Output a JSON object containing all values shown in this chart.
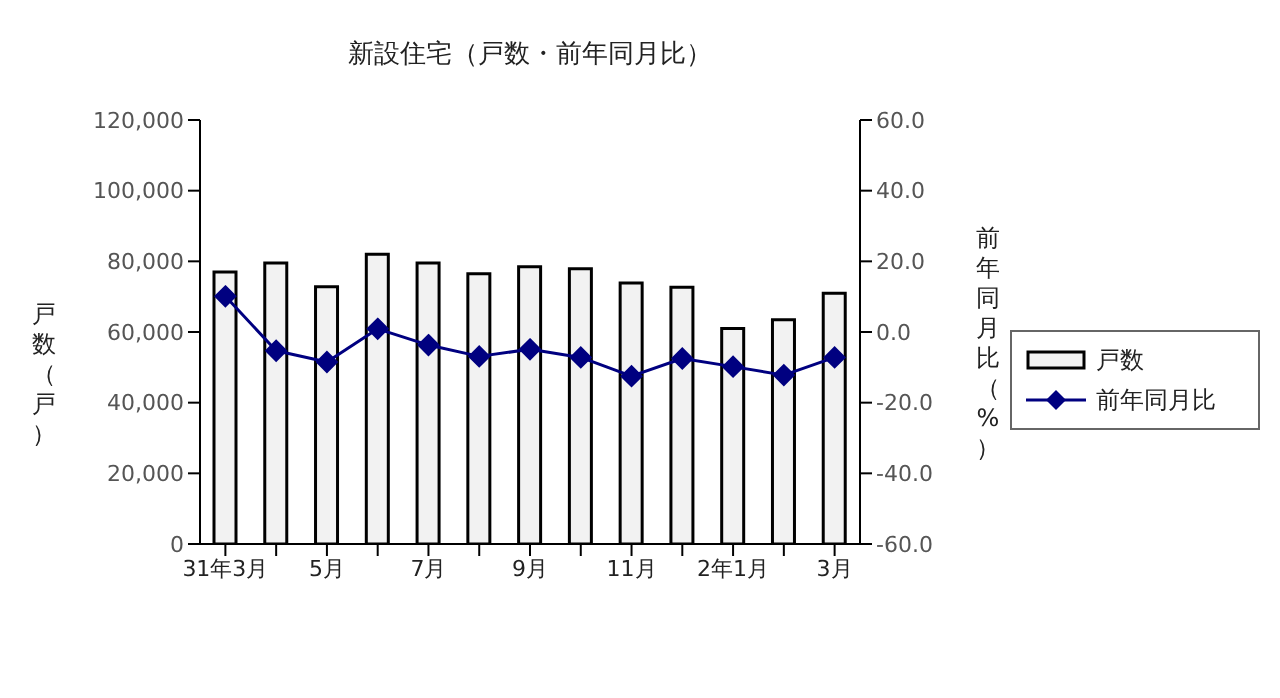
{
  "chart_data": {
    "type": "bar",
    "title": "新設住宅（戸数・前年同月比）",
    "ylabel": "戸数（戸）",
    "y2label": "前年同月比（%）",
    "categories": [
      "31年3月",
      null,
      "5月",
      null,
      "7月",
      null,
      "9月",
      null,
      "11月",
      null,
      "2年1月",
      null,
      "3月"
    ],
    "series": [
      {
        "name": "戸数",
        "color": "#f2f2f2",
        "values": [
          77000,
          79500,
          72800,
          82000,
          79500,
          76500,
          78500,
          77900,
          73900,
          72700,
          61000,
          63500,
          71000
        ]
      },
      {
        "name": "前年同月比",
        "type": "line",
        "axis": "y2",
        "color": "#000080",
        "marker": "diamond",
        "values": [
          10.1,
          -5.3,
          -8.5,
          0.9,
          -3.7,
          -6.9,
          -4.9,
          -7.2,
          -12.5,
          -7.5,
          -9.8,
          -12.2,
          -7.2
        ]
      }
    ],
    "ylim": [
      0,
      120000
    ],
    "yticks": [
      0,
      {
        "value": 20000,
        "label": "20,000"
      },
      {
        "value": 40000,
        "label": "40,000"
      },
      {
        "value": 60000,
        "label": "60,000"
      },
      {
        "value": 80000,
        "label": "80,000"
      },
      {
        "value": 100000,
        "label": "100,000"
      },
      {
        "value": 120000,
        "label": "120,000"
      }
    ],
    "y2lim": [
      -60,
      60
    ],
    "y2ticks": [
      {
        "value": -60,
        "label": "-60.0"
      },
      {
        "value": -40,
        "label": "-40.0"
      },
      {
        "value": -20,
        "label": "-20.0"
      },
      {
        "value": 0,
        "label": "0.0"
      },
      {
        "value": 20,
        "label": "20.0"
      },
      {
        "value": 40,
        "label": "40.0"
      },
      {
        "value": 60,
        "label": "60.0"
      }
    ],
    "grid": false,
    "legend": "right"
  }
}
